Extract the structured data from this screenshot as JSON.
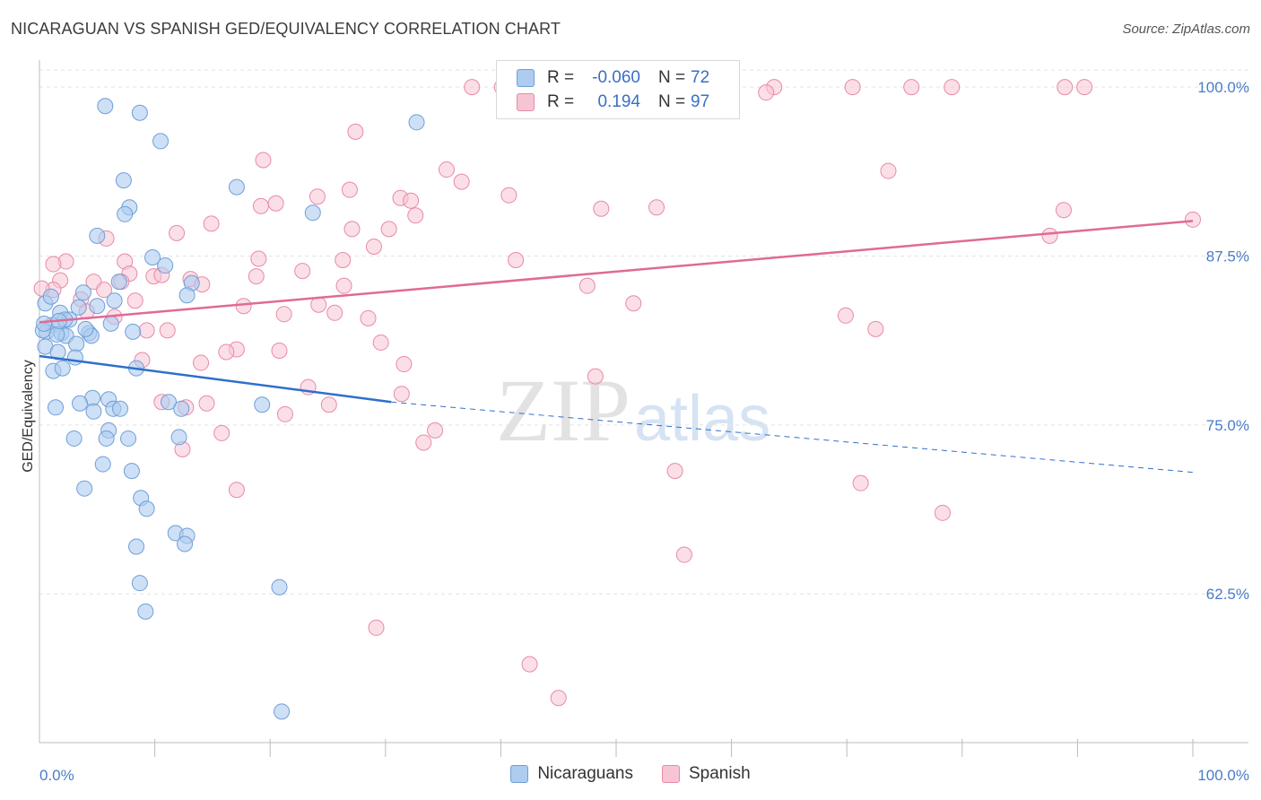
{
  "title": "NICARAGUAN VS SPANISH GED/EQUIVALENCY CORRELATION CHART",
  "source": "Source: ZipAtlas.com",
  "watermark": {
    "zip": "ZIP",
    "atlas": "atlas"
  },
  "legend": {
    "rows": [
      {
        "r_label": "R =",
        "r_value": "-0.060",
        "n_label": "N =",
        "n_value": "72"
      },
      {
        "r_label": "R =",
        "r_value": "0.194",
        "n_label": "N =",
        "n_value": "97"
      }
    ]
  },
  "bottom_legend": {
    "series1": "Nicaraguans",
    "series2": "Spanish"
  },
  "colors": {
    "nicaraguans_fill": "#aecbf0",
    "nicaraguans_stroke": "#6f9fd8",
    "nicaraguans_line": "#2f6fcc",
    "spanish_fill": "#f7c4d4",
    "spanish_stroke": "#e88aa8",
    "spanish_line": "#e06a95",
    "tick_text": "#4a7cc9",
    "grid": "#e3e3e3"
  },
  "chart_data": {
    "type": "scatter",
    "ylabel": "GED/Equivalency",
    "xlim": [
      0,
      100
    ],
    "ylim": [
      51.5,
      102
    ],
    "x_tick_labels": [
      "0.0%",
      "100.0%"
    ],
    "y_ticks": [
      {
        "value": 100,
        "label": "100.0%"
      },
      {
        "value": 87.5,
        "label": "87.5%"
      },
      {
        "value": 75,
        "label": "75.0%"
      },
      {
        "value": 62.5,
        "label": "62.5%"
      }
    ],
    "series": [
      {
        "name": "Nicaraguans",
        "trend": {
          "x": [
            0,
            30.5
          ],
          "y": [
            80.1,
            76.7
          ]
        },
        "trend_dashed": {
          "x": [
            30.5,
            100
          ],
          "y": [
            76.7,
            71.5
          ]
        },
        "points": [
          [
            5.7,
            98.6
          ],
          [
            8.7,
            98.1
          ],
          [
            10.5,
            96.0
          ],
          [
            32.7,
            97.4
          ],
          [
            7.3,
            93.1
          ],
          [
            17.1,
            92.6
          ],
          [
            7.8,
            91.1
          ],
          [
            7.4,
            90.6
          ],
          [
            23.7,
            90.7
          ],
          [
            5.0,
            89.0
          ],
          [
            9.8,
            87.4
          ],
          [
            10.9,
            86.8
          ],
          [
            3.8,
            84.8
          ],
          [
            6.9,
            85.6
          ],
          [
            13.2,
            85.5
          ],
          [
            12.8,
            84.6
          ],
          [
            0.5,
            84.0
          ],
          [
            5.0,
            83.8
          ],
          [
            3.4,
            83.7
          ],
          [
            1.8,
            83.3
          ],
          [
            2.6,
            82.8
          ],
          [
            6.2,
            82.5
          ],
          [
            1.1,
            82.4
          ],
          [
            0.6,
            81.9
          ],
          [
            1.9,
            81.8
          ],
          [
            4.3,
            81.8
          ],
          [
            8.1,
            81.9
          ],
          [
            2.3,
            81.6
          ],
          [
            4.5,
            81.6
          ],
          [
            1.5,
            81.7
          ],
          [
            3.2,
            81.0
          ],
          [
            0.5,
            80.8
          ],
          [
            1.6,
            80.4
          ],
          [
            3.1,
            80.0
          ],
          [
            1.2,
            79.0
          ],
          [
            2.0,
            79.2
          ],
          [
            8.4,
            79.2
          ],
          [
            4.6,
            77.0
          ],
          [
            6.0,
            76.9
          ],
          [
            11.2,
            76.7
          ],
          [
            19.3,
            76.5
          ],
          [
            1.4,
            76.3
          ],
          [
            3.5,
            76.6
          ],
          [
            6.4,
            76.2
          ],
          [
            12.3,
            76.2
          ],
          [
            7.0,
            76.2
          ],
          [
            4.7,
            76.0
          ],
          [
            6.0,
            74.6
          ],
          [
            3.0,
            74.0
          ],
          [
            5.8,
            74.0
          ],
          [
            7.7,
            74.0
          ],
          [
            12.1,
            74.1
          ],
          [
            5.5,
            72.1
          ],
          [
            8.0,
            71.6
          ],
          [
            3.9,
            70.3
          ],
          [
            8.8,
            69.6
          ],
          [
            9.3,
            68.8
          ],
          [
            11.8,
            67.0
          ],
          [
            12.8,
            66.8
          ],
          [
            12.6,
            66.2
          ],
          [
            8.4,
            66.0
          ],
          [
            8.7,
            63.3
          ],
          [
            20.8,
            63.0
          ],
          [
            9.2,
            61.2
          ],
          [
            21.0,
            53.8
          ],
          [
            0.3,
            82.0
          ],
          [
            0.4,
            82.5
          ],
          [
            1.0,
            84.5
          ],
          [
            6.5,
            84.2
          ],
          [
            4.0,
            82.1
          ],
          [
            2.2,
            82.8
          ],
          [
            1.7,
            82.7
          ]
        ]
      },
      {
        "name": "Spanish",
        "trend": {
          "x": [
            0,
            100
          ],
          "y": [
            82.6,
            90.1
          ]
        },
        "points": [
          [
            37.5,
            100
          ],
          [
            40.1,
            100
          ],
          [
            47.6,
            100
          ],
          [
            56.1,
            100
          ],
          [
            63.7,
            100
          ],
          [
            70.5,
            100
          ],
          [
            63.0,
            99.6
          ],
          [
            75.6,
            100
          ],
          [
            79.1,
            100
          ],
          [
            88.9,
            100
          ],
          [
            90.6,
            100
          ],
          [
            27.4,
            96.7
          ],
          [
            19.4,
            94.6
          ],
          [
            35.3,
            93.9
          ],
          [
            36.6,
            93.0
          ],
          [
            40.7,
            92.0
          ],
          [
            31.3,
            91.8
          ],
          [
            32.2,
            91.6
          ],
          [
            24.1,
            91.9
          ],
          [
            20.5,
            91.4
          ],
          [
            19.2,
            91.2
          ],
          [
            26.9,
            92.4
          ],
          [
            48.7,
            91.0
          ],
          [
            53.5,
            91.1
          ],
          [
            32.6,
            90.5
          ],
          [
            14.9,
            89.9
          ],
          [
            27.1,
            89.5
          ],
          [
            30.3,
            89.5
          ],
          [
            11.9,
            89.2
          ],
          [
            5.8,
            88.8
          ],
          [
            29.0,
            88.2
          ],
          [
            87.6,
            89.0
          ],
          [
            88.8,
            90.9
          ],
          [
            100,
            90.2
          ],
          [
            73.6,
            93.8
          ],
          [
            2.3,
            87.1
          ],
          [
            1.2,
            86.9
          ],
          [
            7.4,
            87.1
          ],
          [
            19.0,
            87.3
          ],
          [
            26.3,
            87.2
          ],
          [
            41.3,
            87.2
          ],
          [
            22.8,
            86.4
          ],
          [
            7.8,
            86.2
          ],
          [
            9.9,
            86.0
          ],
          [
            10.6,
            86.1
          ],
          [
            18.8,
            86.0
          ],
          [
            13.1,
            85.8
          ],
          [
            1.8,
            85.7
          ],
          [
            4.7,
            85.6
          ],
          [
            7.1,
            85.6
          ],
          [
            14.1,
            85.4
          ],
          [
            26.4,
            85.3
          ],
          [
            5.6,
            85.0
          ],
          [
            1.2,
            85.0
          ],
          [
            47.5,
            85.3
          ],
          [
            3.6,
            84.3
          ],
          [
            8.3,
            84.2
          ],
          [
            51.5,
            84.0
          ],
          [
            17.7,
            83.8
          ],
          [
            24.2,
            83.9
          ],
          [
            4.1,
            83.4
          ],
          [
            6.5,
            83.0
          ],
          [
            21.2,
            83.2
          ],
          [
            25.6,
            83.3
          ],
          [
            28.5,
            82.9
          ],
          [
            69.9,
            83.1
          ],
          [
            72.5,
            82.1
          ],
          [
            9.3,
            82.0
          ],
          [
            11.1,
            82.0
          ],
          [
            29.6,
            81.1
          ],
          [
            17.1,
            80.6
          ],
          [
            16.2,
            80.4
          ],
          [
            20.8,
            80.5
          ],
          [
            8.9,
            79.8
          ],
          [
            14.0,
            79.6
          ],
          [
            31.6,
            79.5
          ],
          [
            48.2,
            78.6
          ],
          [
            23.3,
            77.8
          ],
          [
            31.4,
            77.3
          ],
          [
            10.6,
            76.7
          ],
          [
            12.7,
            76.3
          ],
          [
            14.5,
            76.6
          ],
          [
            25.1,
            76.5
          ],
          [
            21.3,
            75.8
          ],
          [
            34.3,
            74.6
          ],
          [
            15.8,
            74.4
          ],
          [
            33.3,
            73.7
          ],
          [
            12.4,
            73.2
          ],
          [
            55.1,
            71.6
          ],
          [
            71.2,
            70.7
          ],
          [
            17.1,
            70.2
          ],
          [
            78.3,
            68.5
          ],
          [
            55.9,
            65.4
          ],
          [
            29.2,
            60.0
          ],
          [
            42.5,
            57.3
          ],
          [
            45.0,
            54.8
          ],
          [
            0.2,
            85.1
          ]
        ]
      }
    ]
  }
}
